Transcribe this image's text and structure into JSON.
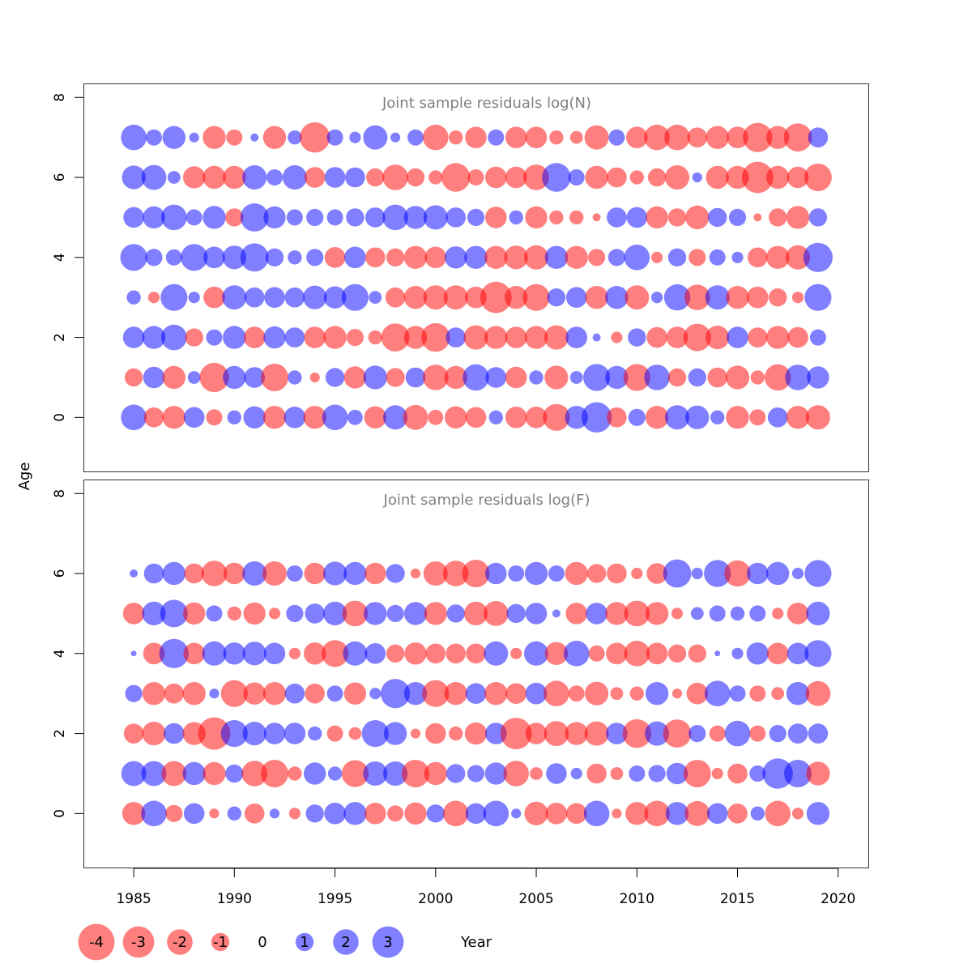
{
  "chart_data": [
    {
      "type": "scatter",
      "title": "Joint sample residuals log(N)",
      "xlabel": "Year",
      "ylabel": "Age",
      "xlim": [
        1982.5,
        2021.5
      ],
      "ylim": [
        -1.35,
        8.35
      ],
      "x_ticks": [
        1985,
        1990,
        1995,
        2000,
        2005,
        2010,
        2015,
        2020
      ],
      "y_ticks": [
        0,
        2,
        4,
        6,
        8
      ],
      "years": [
        1985,
        1986,
        1987,
        1988,
        1989,
        1990,
        1991,
        1992,
        1993,
        1994,
        1995,
        1996,
        1997,
        1998,
        1999,
        2000,
        2001,
        2002,
        2003,
        2004,
        2005,
        2006,
        2007,
        2008,
        2009,
        2010,
        2011,
        2012,
        2013,
        2014,
        2015,
        2016,
        2017,
        2018,
        2019
      ],
      "ages": [
        0,
        1,
        2,
        3,
        4,
        5,
        6,
        7
      ],
      "residuals": {
        "7": [
          2.0,
          0.8,
          1.6,
          0.3,
          -1.6,
          -0.8,
          0.2,
          -1.6,
          0.6,
          -2.8,
          0.8,
          0.4,
          1.8,
          0.3,
          0.8,
          -2.0,
          -0.6,
          -1.4,
          0.8,
          -1.4,
          -1.4,
          -0.6,
          -0.5,
          -1.8,
          0.8,
          -1.4,
          -2.0,
          -2.0,
          -1.2,
          -1.6,
          -1.4,
          -2.6,
          -1.6,
          -2.4,
          1.2
        ],
        "6": [
          1.7,
          1.9,
          0.5,
          -1.5,
          -1.6,
          -1.6,
          1.8,
          0.8,
          1.8,
          -1.3,
          1.3,
          1.2,
          -1.0,
          -2.0,
          -1.0,
          -0.6,
          -2.5,
          -0.8,
          -1.4,
          -1.4,
          -2.0,
          2.5,
          0.8,
          -1.6,
          -1.2,
          -0.6,
          -1.0,
          -1.8,
          0.3,
          -1.6,
          -1.6,
          -3.0,
          -1.6,
          -1.4,
          -2.3
        ],
        "5": [
          1.3,
          1.5,
          2.0,
          0.8,
          1.6,
          -1.0,
          2.4,
          1.5,
          0.8,
          0.9,
          0.8,
          1.0,
          1.2,
          2.0,
          1.6,
          1.8,
          1.2,
          0.9,
          -1.4,
          0.6,
          -1.5,
          -0.6,
          -0.6,
          -0.2,
          1.2,
          1.3,
          -1.5,
          -1.0,
          -1.7,
          1.1,
          0.9,
          -0.2,
          -1.0,
          -1.6,
          1.0
        ],
        "4": [
          2.2,
          0.9,
          0.8,
          2.2,
          1.4,
          1.7,
          2.4,
          1.0,
          0.6,
          0.9,
          -1.3,
          1.4,
          -1.2,
          -1.0,
          -1.6,
          -1.4,
          1.5,
          1.6,
          -1.6,
          -1.7,
          -1.8,
          1.6,
          -1.6,
          -0.9,
          0.9,
          2.0,
          -0.4,
          1.0,
          -0.9,
          0.8,
          0.4,
          -1.2,
          -1.6,
          -1.8,
          2.6
        ],
        "3": [
          0.6,
          -0.4,
          2.2,
          0.4,
          -1.4,
          1.8,
          1.2,
          1.3,
          1.2,
          1.7,
          1.5,
          2.2,
          0.5,
          -1.2,
          -1.6,
          -1.8,
          -1.8,
          -1.4,
          -3.0,
          -1.6,
          -2.2,
          1.0,
          1.3,
          -1.6,
          1.6,
          -1.8,
          0.4,
          2.1,
          -2.0,
          1.8,
          -1.6,
          -1.4,
          -1.0,
          -0.4,
          2.2
        ],
        "2": [
          1.4,
          1.6,
          2.0,
          -1.0,
          0.8,
          1.6,
          -1.4,
          1.5,
          1.2,
          -1.4,
          -1.6,
          -0.9,
          -0.6,
          -2.4,
          -1.6,
          -2.5,
          1.2,
          -1.8,
          -1.6,
          -1.4,
          -1.6,
          -1.8,
          1.4,
          0.2,
          -0.4,
          1.0,
          -1.3,
          -1.4,
          -2.3,
          -1.7,
          1.4,
          -1.2,
          -1.6,
          -1.3,
          0.8
        ],
        "1": [
          -1.0,
          1.4,
          -1.6,
          0.5,
          -2.6,
          1.6,
          1.3,
          -2.3,
          0.6,
          -0.3,
          1.1,
          -1.5,
          1.7,
          -1.1,
          1.2,
          -2.0,
          -1.6,
          2.1,
          1.3,
          -1.4,
          0.6,
          -1.7,
          0.5,
          2.2,
          1.6,
          -2.2,
          2.0,
          -1.0,
          1.0,
          -1.2,
          -1.7,
          -0.6,
          -2.1,
          2.0,
          1.5
        ],
        "0": [
          2.0,
          -1.2,
          -1.6,
          1.3,
          -0.8,
          0.6,
          1.5,
          -1.6,
          1.4,
          -1.6,
          2.0,
          0.7,
          -1.5,
          1.8,
          -1.9,
          -0.7,
          -1.5,
          -1.3,
          0.6,
          -1.4,
          -1.4,
          -2.2,
          1.6,
          2.8,
          -1.2,
          0.9,
          -1.6,
          1.8,
          1.7,
          0.6,
          -1.6,
          -0.8,
          1.2,
          -1.6,
          -1.8
        ]
      }
    },
    {
      "type": "scatter",
      "title": "Joint sample residuals log(F)",
      "xlabel": "Year",
      "ylabel": "Age",
      "xlim": [
        1982.5,
        2021.5
      ],
      "ylim": [
        -1.35,
        8.35
      ],
      "x_ticks": [
        1985,
        1990,
        1995,
        2000,
        2005,
        2010,
        2015,
        2020
      ],
      "y_ticks": [
        0,
        2,
        4,
        6,
        8
      ],
      "years": [
        1985,
        1986,
        1987,
        1988,
        1989,
        1990,
        1991,
        1992,
        1993,
        1994,
        1995,
        1996,
        1997,
        1998,
        1999,
        2000,
        2001,
        2002,
        2003,
        2004,
        2005,
        2006,
        2007,
        2008,
        2009,
        2010,
        2011,
        2012,
        2013,
        2014,
        2015,
        2016,
        2017,
        2018,
        2019
      ],
      "ages": [
        0,
        1,
        2,
        3,
        4,
        5,
        6
      ],
      "residuals": {
        "6": [
          0.2,
          1.2,
          1.6,
          -1.2,
          -2.0,
          -1.4,
          1.8,
          -1.8,
          0.8,
          -1.4,
          1.7,
          1.6,
          -1.4,
          1.1,
          -0.3,
          -1.8,
          -2.0,
          -2.3,
          1.4,
          0.8,
          1.6,
          0.8,
          -1.6,
          -1.1,
          -1.2,
          -0.4,
          -1.3,
          2.4,
          0.4,
          2.2,
          -2.1,
          1.4,
          1.6,
          0.4,
          2.2
        ],
        "5": [
          -1.4,
          1.7,
          2.3,
          -1.5,
          0.8,
          -0.6,
          -1.5,
          -0.4,
          0.9,
          1.2,
          1.7,
          -2.0,
          1.6,
          0.9,
          1.6,
          -1.6,
          1.0,
          -1.7,
          -1.9,
          1.1,
          1.4,
          0.2,
          -1.4,
          1.4,
          -1.6,
          -2.0,
          -1.6,
          -0.4,
          0.5,
          0.8,
          0.6,
          0.8,
          -0.4,
          -1.4,
          1.7
        ],
        "4": [
          0.1,
          -1.4,
          2.6,
          -1.4,
          1.8,
          1.5,
          1.7,
          1.4,
          -0.4,
          -1.5,
          -2.2,
          1.8,
          1.3,
          -1.0,
          -1.5,
          -1.2,
          -1.2,
          -1.2,
          1.8,
          -0.4,
          1.8,
          -1.6,
          2.0,
          -0.8,
          -1.4,
          -2.0,
          -1.4,
          -1.0,
          -1.0,
          0.1,
          0.4,
          1.5,
          -1.4,
          1.4,
          2.2
        ],
        "3": [
          0.9,
          -1.6,
          -1.2,
          -1.6,
          0.3,
          -2.2,
          -1.5,
          -1.6,
          1.2,
          -1.2,
          0.8,
          -1.5,
          0.4,
          2.6,
          1.6,
          -2.2,
          -1.6,
          1.3,
          -1.6,
          -1.3,
          1.4,
          -2.0,
          -0.8,
          -1.7,
          -0.5,
          -0.6,
          1.6,
          -0.3,
          -1.4,
          2.0,
          0.8,
          -0.8,
          -0.5,
          1.6,
          -1.9
        ],
        "2": [
          -1.2,
          -1.7,
          1.3,
          -1.6,
          -3.2,
          2.2,
          1.7,
          1.4,
          1.4,
          0.6,
          -0.8,
          -0.5,
          2.2,
          1.6,
          -0.3,
          -1.3,
          -0.6,
          -1.5,
          1.4,
          -3.0,
          -1.4,
          -1.9,
          -1.6,
          -1.8,
          1.4,
          -2.5,
          1.8,
          -2.4,
          0.9,
          -0.8,
          2.0,
          -0.8,
          0.9,
          1.2,
          1.2
        ],
        "1": [
          1.9,
          1.9,
          -1.9,
          1.6,
          -1.6,
          1.0,
          -2.0,
          -2.3,
          -0.6,
          1.5,
          0.6,
          -2.2,
          1.8,
          1.8,
          -2.3,
          -1.6,
          1.1,
          0.9,
          1.5,
          -2.0,
          -0.5,
          1.3,
          0.4,
          -1.2,
          -0.5,
          0.8,
          0.9,
          1.4,
          -2.3,
          -0.4,
          -1.2,
          0.8,
          2.8,
          2.3,
          -1.7
        ],
        "0": [
          -1.6,
          2.0,
          -0.9,
          1.3,
          -0.3,
          0.6,
          -1.2,
          0.3,
          -0.4,
          1.0,
          1.4,
          1.6,
          -1.4,
          -0.8,
          -1.5,
          1.0,
          -2.0,
          1.3,
          2.0,
          0.3,
          -1.7,
          -1.4,
          -1.3,
          2.0,
          -0.3,
          -1.6,
          -2.0,
          1.6,
          -1.9,
          1.3,
          -1.2,
          0.6,
          -2.0,
          -0.4,
          1.6
        ]
      }
    }
  ],
  "axes": {
    "ylabel": "Age",
    "xlabel": "Year",
    "y_tick_labels": [
      "0",
      "2",
      "4",
      "6",
      "8"
    ],
    "x_tick_labels": [
      "1985",
      "1990",
      "1995",
      "2000",
      "2005",
      "2010",
      "2015",
      "2020"
    ]
  },
  "legend": {
    "placement": "bottom-left",
    "items": [
      {
        "label": "-4",
        "value": -4
      },
      {
        "label": "-3",
        "value": -3
      },
      {
        "label": "-2",
        "value": -2
      },
      {
        "label": "-1",
        "value": -1
      },
      {
        "label": "0",
        "value": 0
      },
      {
        "label": "1",
        "value": 1
      },
      {
        "label": "2",
        "value": 2
      },
      {
        "label": "3",
        "value": 3
      }
    ]
  },
  "colors": {
    "positive": "#0000ff",
    "negative": "#ff0000",
    "title": "#808080"
  }
}
